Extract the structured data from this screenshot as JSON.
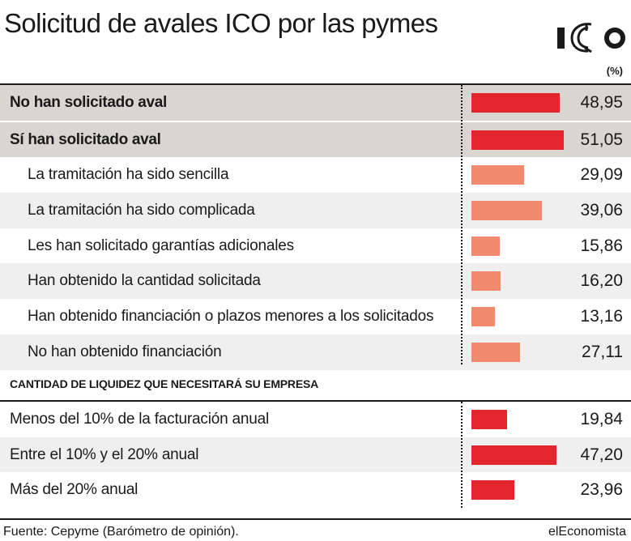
{
  "title": "Solicitud de avales ICO por las pymes",
  "unit_label": "(%)",
  "logo": {
    "icon": "ico-logo-icon"
  },
  "section_heading": "CANTIDAD DE LIQUIDEZ QUE NECESITARÁ SU EMPRESA",
  "source": "Fuente: Cepyme (Barómetro de opinión).",
  "brand": "elEconomista",
  "colors": {
    "bar_primary": "#e3262d",
    "bar_secondary": "#f28b6e",
    "row_strong": "#d9d6d2",
    "row_shade": "#efefef"
  },
  "chart_data": {
    "type": "bar",
    "orientation": "horizontal",
    "xlim": [
      0,
      52
    ],
    "groups": [
      {
        "heading": "",
        "rows": [
          {
            "label": "No han solicitado aval",
            "value": 48.95,
            "display": "48,95",
            "style": "strong"
          },
          {
            "label": "Sí han solicitado aval",
            "value": 51.05,
            "display": "51,05",
            "style": "strong"
          },
          {
            "label": "La tramitación ha sido sencilla",
            "value": 29.09,
            "display": "29,09",
            "style": "sub"
          },
          {
            "label": "La tramitación ha sido complicada",
            "value": 39.06,
            "display": "39,06",
            "style": "sub"
          },
          {
            "label": "Les han solicitado garantías adicionales",
            "value": 15.86,
            "display": "15,86",
            "style": "sub"
          },
          {
            "label": "Han obtenido la cantidad solicitada",
            "value": 16.2,
            "display": "16,20",
            "style": "sub"
          },
          {
            "label": "Han obtenido financiación o plazos menores a los solicitados",
            "value": 13.16,
            "display": "13,16",
            "style": "sub"
          },
          {
            "label": "No han obtenido financiación",
            "value": 27.11,
            "display": "27,11",
            "style": "sub"
          }
        ]
      },
      {
        "heading": "CANTIDAD DE LIQUIDEZ QUE NECESITARÁ SU EMPRESA",
        "rows": [
          {
            "label": "Menos del 10% de la facturación anual",
            "value": 19.84,
            "display": "19,84",
            "style": "plain"
          },
          {
            "label": "Entre el 10% y el 20% anual",
            "value": 47.2,
            "display": "47,20",
            "style": "plain"
          },
          {
            "label": "Más del 20% anual",
            "value": 23.96,
            "display": "23,96",
            "style": "plain"
          }
        ]
      }
    ]
  }
}
